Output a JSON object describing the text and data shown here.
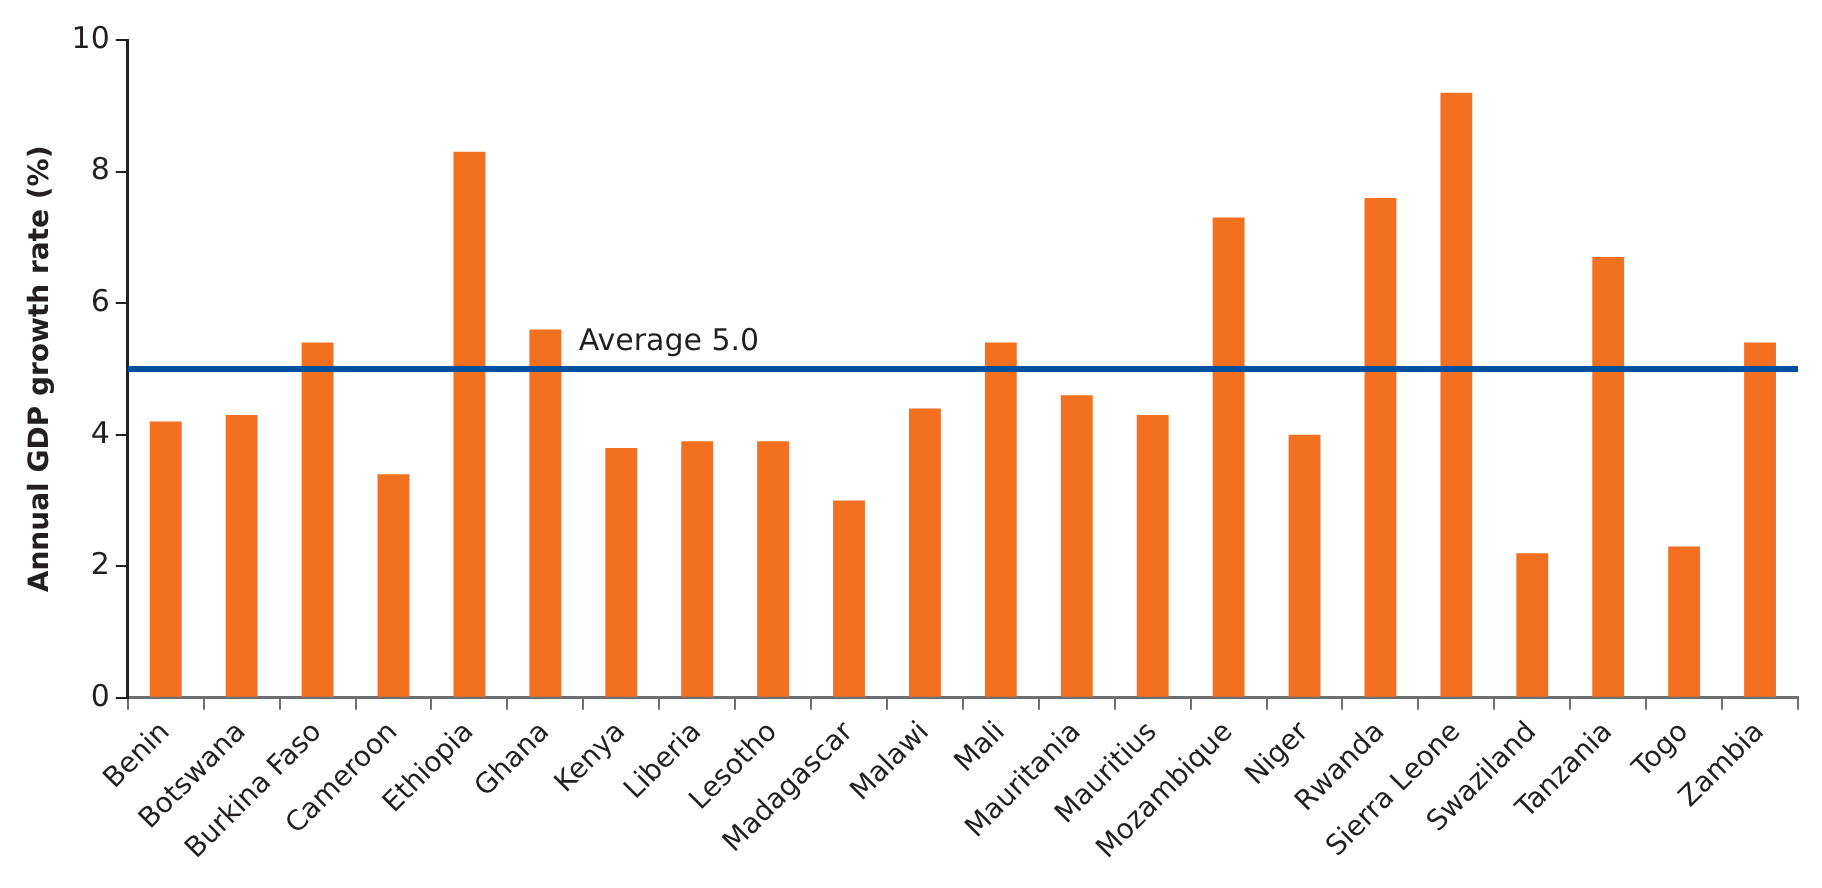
{
  "chart_data": {
    "type": "bar",
    "ylabel": "Annual GDP growth rate (%)",
    "categories": [
      "Benin",
      "Botswana",
      "Burkina Faso",
      "Cameroon",
      "Ethiopia",
      "Ghana",
      "Kenya",
      "Liberia",
      "Lesotho",
      "Madagascar",
      "Malawi",
      "Mali",
      "Mauritania",
      "Mauritius",
      "Mozambique",
      "Niger",
      "Rwanda",
      "Sierra Leone",
      "Swaziland",
      "Tanzania",
      "Togo",
      "Zambia"
    ],
    "values": [
      4.2,
      4.3,
      5.4,
      3.4,
      8.3,
      5.6,
      3.8,
      3.9,
      3.9,
      3.0,
      4.4,
      5.4,
      4.6,
      4.3,
      7.3,
      4.0,
      7.6,
      9.2,
      2.2,
      6.7,
      2.3,
      5.4
    ],
    "color": "#f37021",
    "ylim": [
      0,
      10
    ],
    "yticks": [
      0,
      2,
      4,
      6,
      8,
      10
    ],
    "grid": false,
    "legend": false,
    "ref_lines": [
      {
        "axis": "y",
        "value": 5.0,
        "label": "Average 5.0",
        "color": "#0050a0"
      }
    ]
  }
}
